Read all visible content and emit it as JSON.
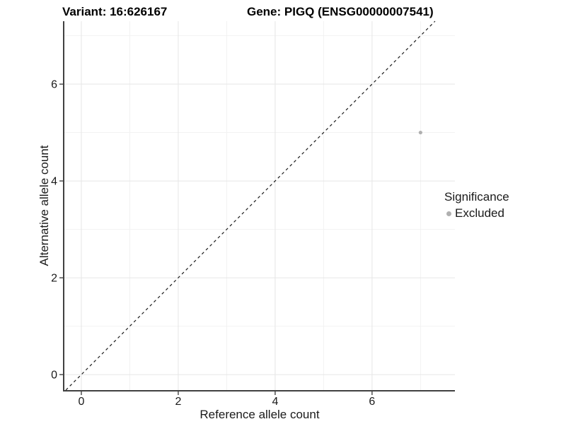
{
  "titles": {
    "variant": "Variant: 16:626167",
    "gene": "Gene: PIGQ (ENSG00000007541)"
  },
  "chart_data": {
    "type": "scatter",
    "title": "Variant: 16:626167   Gene: PIGQ (ENSG00000007541)",
    "xlabel": "Reference allele count",
    "ylabel": "Alternative allele count",
    "x_domain": [
      -0.35,
      7.71
    ],
    "y_domain": [
      -0.32,
      7.3
    ],
    "x_major_ticks": [
      0,
      2,
      4,
      6
    ],
    "x_minor_ticks": [
      1,
      3,
      5,
      7
    ],
    "y_major_ticks": [
      0,
      2,
      4,
      6
    ],
    "y_minor_ticks": [
      1,
      3,
      5,
      7
    ],
    "grid": true,
    "reference_line": {
      "kind": "identity y=x",
      "style": "dashed",
      "color": "#1a1a1a"
    },
    "series": [
      {
        "name": "Excluded",
        "color": "#b0b0b0",
        "points": [
          [
            7,
            5
          ]
        ]
      }
    ],
    "legend": {
      "title": "Significance",
      "position": "right",
      "items": [
        {
          "label": "Excluded",
          "color": "#b0b0b0"
        }
      ]
    }
  },
  "colors": {
    "background": "#ffffff",
    "grid_major": "#e6e6e6",
    "grid_minor": "#f2f2f2",
    "axis_line": "#404040",
    "tick_mark": "#333333",
    "text": "#1a1a1a",
    "point": "#b0b0b0"
  }
}
